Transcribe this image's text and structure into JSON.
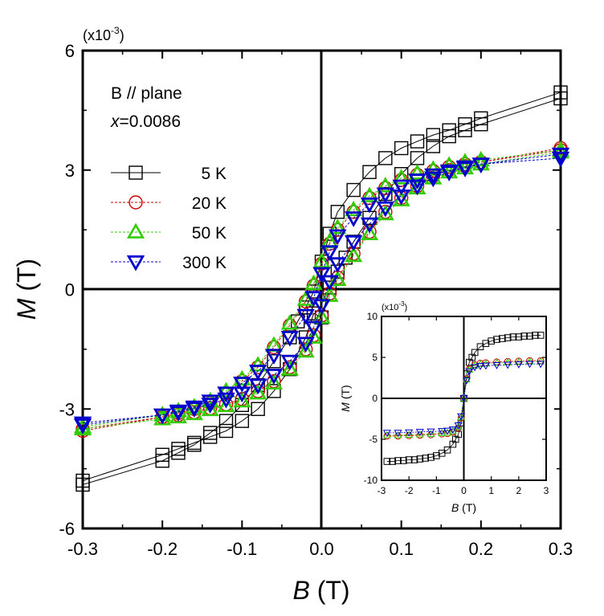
{
  "chart_data": {
    "type": "scatter",
    "main": {
      "xlabel_var": "B",
      "xlabel_unit": "(T)",
      "ylabel_var": "M",
      "ylabel_unit": "(T)",
      "scale_note": "(x10",
      "scale_exp": "-3",
      "scale_close": ")",
      "xlim": [
        -0.3,
        0.3
      ],
      "ylim": [
        -6,
        6
      ],
      "x_tick_values": [
        -0.3,
        -0.2,
        -0.1,
        0.0,
        0.1,
        0.2,
        0.3
      ],
      "x_tick_labels": [
        "-0.3",
        "-0.2",
        "-0.1",
        "0.0",
        "0.1",
        "0.2",
        "0.3"
      ],
      "y_tick_values": [
        -6,
        -3,
        0,
        3,
        6
      ],
      "y_tick_labels": [
        "-6",
        "-3",
        "0",
        "3",
        "6"
      ],
      "annotation_line1": "B // plane",
      "annotation_var": "x",
      "annotation_value": "=0.0086",
      "legend_position": "upper-left",
      "series": [
        {
          "name": "5 K",
          "color": "#000000",
          "marker": "square",
          "x_up": [
            -0.3,
            -0.2,
            -0.18,
            -0.16,
            -0.14,
            -0.12,
            -0.1,
            -0.08,
            -0.06,
            -0.04,
            -0.03,
            -0.02,
            -0.01,
            0.0,
            0.01,
            0.02,
            0.04,
            0.06,
            0.08,
            0.1,
            0.12,
            0.14,
            0.16,
            0.18,
            0.2,
            0.3
          ],
          "y_up": [
            -4.9,
            -4.3,
            -4.1,
            -3.9,
            -3.6,
            -3.3,
            -2.9,
            -2.4,
            -1.8,
            -1.2,
            -0.8,
            -0.45,
            -0.05,
            0.7,
            1.4,
            1.95,
            2.5,
            2.95,
            3.3,
            3.55,
            3.72,
            3.88,
            4.0,
            4.15,
            4.3,
            4.95
          ],
          "x_down": [
            -0.3,
            -0.2,
            -0.18,
            -0.16,
            -0.14,
            -0.12,
            -0.1,
            -0.08,
            -0.06,
            -0.04,
            -0.02,
            -0.01,
            0.0,
            0.01,
            0.02,
            0.03,
            0.04,
            0.06,
            0.08,
            0.1,
            0.12,
            0.14,
            0.16,
            0.18,
            0.2,
            0.3
          ],
          "y_down": [
            -4.8,
            -4.15,
            -4.0,
            -3.85,
            -3.7,
            -3.55,
            -3.3,
            -3.0,
            -2.55,
            -2.0,
            -1.2,
            -0.6,
            -0.7,
            0.05,
            0.45,
            0.8,
            1.2,
            1.8,
            2.4,
            2.9,
            3.3,
            3.6,
            3.85,
            4.0,
            4.15,
            4.8
          ]
        },
        {
          "name": "20 K",
          "color": "#cc0000",
          "marker": "circle",
          "x_up": [
            -0.3,
            -0.2,
            -0.18,
            -0.16,
            -0.14,
            -0.12,
            -0.1,
            -0.08,
            -0.06,
            -0.04,
            -0.02,
            -0.01,
            0.0,
            0.01,
            0.02,
            0.04,
            0.06,
            0.08,
            0.1,
            0.12,
            0.14,
            0.16,
            0.18,
            0.2,
            0.3
          ],
          "y_up": [
            -3.55,
            -3.2,
            -3.1,
            -3.0,
            -2.85,
            -2.6,
            -2.3,
            -1.95,
            -1.45,
            -0.9,
            -0.3,
            0.1,
            0.65,
            1.15,
            1.5,
            1.95,
            2.3,
            2.55,
            2.75,
            2.88,
            2.98,
            3.08,
            3.15,
            3.2,
            3.5
          ],
          "x_down": [
            -0.3,
            -0.2,
            -0.18,
            -0.16,
            -0.14,
            -0.12,
            -0.1,
            -0.08,
            -0.06,
            -0.04,
            -0.02,
            -0.01,
            0.0,
            0.01,
            0.02,
            0.04,
            0.06,
            0.08,
            0.1,
            0.12,
            0.14,
            0.16,
            0.18,
            0.2,
            0.3
          ],
          "y_down": [
            -3.5,
            -3.2,
            -3.15,
            -3.08,
            -2.98,
            -2.88,
            -2.75,
            -2.55,
            -2.3,
            -1.95,
            -1.5,
            -1.15,
            -0.65,
            -0.1,
            0.3,
            0.9,
            1.45,
            1.95,
            2.3,
            2.6,
            2.85,
            3.0,
            3.1,
            3.2,
            3.55
          ]
        },
        {
          "name": "50 K",
          "color": "#33cc00",
          "marker": "triangle-up",
          "x_up": [
            -0.3,
            -0.2,
            -0.18,
            -0.16,
            -0.14,
            -0.12,
            -0.1,
            -0.08,
            -0.06,
            -0.04,
            -0.02,
            -0.01,
            0.0,
            0.01,
            0.02,
            0.04,
            0.06,
            0.08,
            0.1,
            0.12,
            0.14,
            0.16,
            0.18,
            0.2,
            0.3
          ],
          "y_up": [
            -3.45,
            -3.15,
            -3.05,
            -2.95,
            -2.8,
            -2.55,
            -2.25,
            -1.9,
            -1.4,
            -0.85,
            -0.25,
            0.15,
            0.7,
            1.2,
            1.55,
            2.0,
            2.35,
            2.6,
            2.8,
            2.92,
            3.02,
            3.12,
            3.2,
            3.25,
            3.5
          ],
          "x_down": [
            -0.3,
            -0.2,
            -0.18,
            -0.16,
            -0.14,
            -0.12,
            -0.1,
            -0.08,
            -0.06,
            -0.04,
            -0.02,
            -0.01,
            0.0,
            0.01,
            0.02,
            0.04,
            0.06,
            0.08,
            0.1,
            0.12,
            0.14,
            0.16,
            0.18,
            0.2,
            0.3
          ],
          "y_down": [
            -3.5,
            -3.25,
            -3.2,
            -3.12,
            -3.02,
            -2.92,
            -2.8,
            -2.6,
            -2.35,
            -2.0,
            -1.55,
            -1.2,
            -0.7,
            -0.15,
            0.25,
            0.85,
            1.4,
            1.9,
            2.25,
            2.55,
            2.8,
            2.95,
            3.05,
            3.15,
            3.45
          ]
        },
        {
          "name": "300 K",
          "color": "#0000cc",
          "marker": "triangle-down",
          "x_up": [
            -0.3,
            -0.2,
            -0.18,
            -0.16,
            -0.14,
            -0.12,
            -0.1,
            -0.08,
            -0.06,
            -0.04,
            -0.02,
            -0.01,
            0.0,
            0.01,
            0.02,
            0.04,
            0.06,
            0.08,
            0.1,
            0.12,
            0.14,
            0.16,
            0.18,
            0.2,
            0.3
          ],
          "y_up": [
            -3.4,
            -3.15,
            -3.05,
            -2.95,
            -2.8,
            -2.6,
            -2.35,
            -2.05,
            -1.65,
            -1.2,
            -0.65,
            -0.2,
            0.4,
            0.95,
            1.35,
            1.8,
            2.15,
            2.4,
            2.6,
            2.75,
            2.88,
            2.98,
            3.08,
            3.15,
            3.3
          ],
          "x_down": [
            -0.3,
            -0.2,
            -0.18,
            -0.16,
            -0.14,
            -0.12,
            -0.1,
            -0.08,
            -0.06,
            -0.04,
            -0.02,
            -0.01,
            0.0,
            0.01,
            0.02,
            0.04,
            0.06,
            0.08,
            0.1,
            0.12,
            0.14,
            0.16,
            0.18,
            0.2,
            0.3
          ],
          "y_down": [
            -3.35,
            -3.15,
            -3.08,
            -2.98,
            -2.88,
            -2.75,
            -2.6,
            -2.4,
            -2.15,
            -1.8,
            -1.35,
            -0.95,
            -0.4,
            0.2,
            0.65,
            1.2,
            1.65,
            2.05,
            2.35,
            2.6,
            2.8,
            2.95,
            3.05,
            3.15,
            3.4
          ]
        }
      ]
    },
    "inset": {
      "xlabel_var": "B",
      "xlabel_unit": "(T)",
      "ylabel_var": "M",
      "ylabel_unit": "(T)",
      "scale_note": "(x10",
      "scale_exp": "-3",
      "scale_close": ")",
      "xlim": [
        -3,
        3
      ],
      "ylim": [
        -10,
        10
      ],
      "x_tick_values": [
        -3,
        -2,
        -1,
        0,
        1,
        2,
        3
      ],
      "x_tick_labels": [
        "-3",
        "-2",
        "-1",
        "0",
        "1",
        "2",
        "3"
      ],
      "y_tick_values": [
        -10,
        -5,
        0,
        5,
        10
      ],
      "y_tick_labels": [
        "-10",
        "-5",
        "0",
        "5",
        "10"
      ],
      "series": [
        {
          "name": "5 K",
          "color": "#000000",
          "marker": "square",
          "x": [
            -2.8,
            -2.6,
            -2.4,
            -2.2,
            -2.0,
            -1.8,
            -1.6,
            -1.4,
            -1.2,
            -1.0,
            -0.8,
            -0.6,
            -0.4,
            -0.3,
            -0.2,
            -0.1,
            0.0,
            0.1,
            0.2,
            0.3,
            0.4,
            0.6,
            0.8,
            1.0,
            1.2,
            1.4,
            1.6,
            1.8,
            2.0,
            2.2,
            2.4,
            2.6,
            2.8
          ],
          "y": [
            -7.7,
            -7.7,
            -7.6,
            -7.6,
            -7.5,
            -7.5,
            -7.4,
            -7.3,
            -7.2,
            -7.0,
            -6.7,
            -6.3,
            -5.6,
            -5.0,
            -4.4,
            -3.0,
            0.0,
            3.0,
            4.4,
            5.0,
            5.6,
            6.3,
            6.7,
            7.0,
            7.2,
            7.3,
            7.4,
            7.5,
            7.5,
            7.6,
            7.6,
            7.7,
            7.7
          ]
        },
        {
          "name": "20 K",
          "color": "#cc0000",
          "marker": "circle",
          "x": [
            -2.8,
            -2.4,
            -2.0,
            -1.6,
            -1.2,
            -0.8,
            -0.6,
            -0.4,
            -0.2,
            -0.1,
            0.0,
            0.1,
            0.2,
            0.4,
            0.6,
            0.8,
            1.2,
            1.6,
            2.0,
            2.4,
            2.8
          ],
          "y": [
            -4.6,
            -4.6,
            -4.55,
            -4.5,
            -4.45,
            -4.35,
            -4.3,
            -4.1,
            -3.6,
            -2.4,
            0.0,
            2.4,
            3.6,
            4.1,
            4.3,
            4.35,
            4.45,
            4.5,
            4.55,
            4.6,
            4.6
          ]
        },
        {
          "name": "50 K",
          "color": "#33cc00",
          "marker": "triangle-up",
          "x": [
            -2.8,
            -2.4,
            -2.0,
            -1.6,
            -1.2,
            -0.8,
            -0.6,
            -0.4,
            -0.2,
            -0.1,
            0.0,
            0.1,
            0.2,
            0.4,
            0.6,
            0.8,
            1.2,
            1.6,
            2.0,
            2.4,
            2.8
          ],
          "y": [
            -4.5,
            -4.5,
            -4.45,
            -4.4,
            -4.35,
            -4.25,
            -4.2,
            -4.0,
            -3.5,
            -2.3,
            0.0,
            2.3,
            3.5,
            4.0,
            4.2,
            4.25,
            4.35,
            4.4,
            4.45,
            4.5,
            4.5
          ]
        },
        {
          "name": "300 K",
          "color": "#0000cc",
          "marker": "triangle-down",
          "x": [
            -2.8,
            -2.4,
            -2.0,
            -1.6,
            -1.2,
            -0.8,
            -0.6,
            -0.4,
            -0.2,
            -0.1,
            0.0,
            0.1,
            0.2,
            0.4,
            0.6,
            0.8,
            1.2,
            1.6,
            2.0,
            2.4,
            2.8
          ],
          "y": [
            -4.2,
            -4.2,
            -4.15,
            -4.1,
            -4.05,
            -4.0,
            -3.95,
            -3.8,
            -3.3,
            -2.2,
            0.0,
            2.2,
            3.3,
            3.8,
            3.95,
            4.0,
            4.05,
            4.1,
            4.15,
            4.2,
            4.2
          ]
        }
      ]
    }
  }
}
